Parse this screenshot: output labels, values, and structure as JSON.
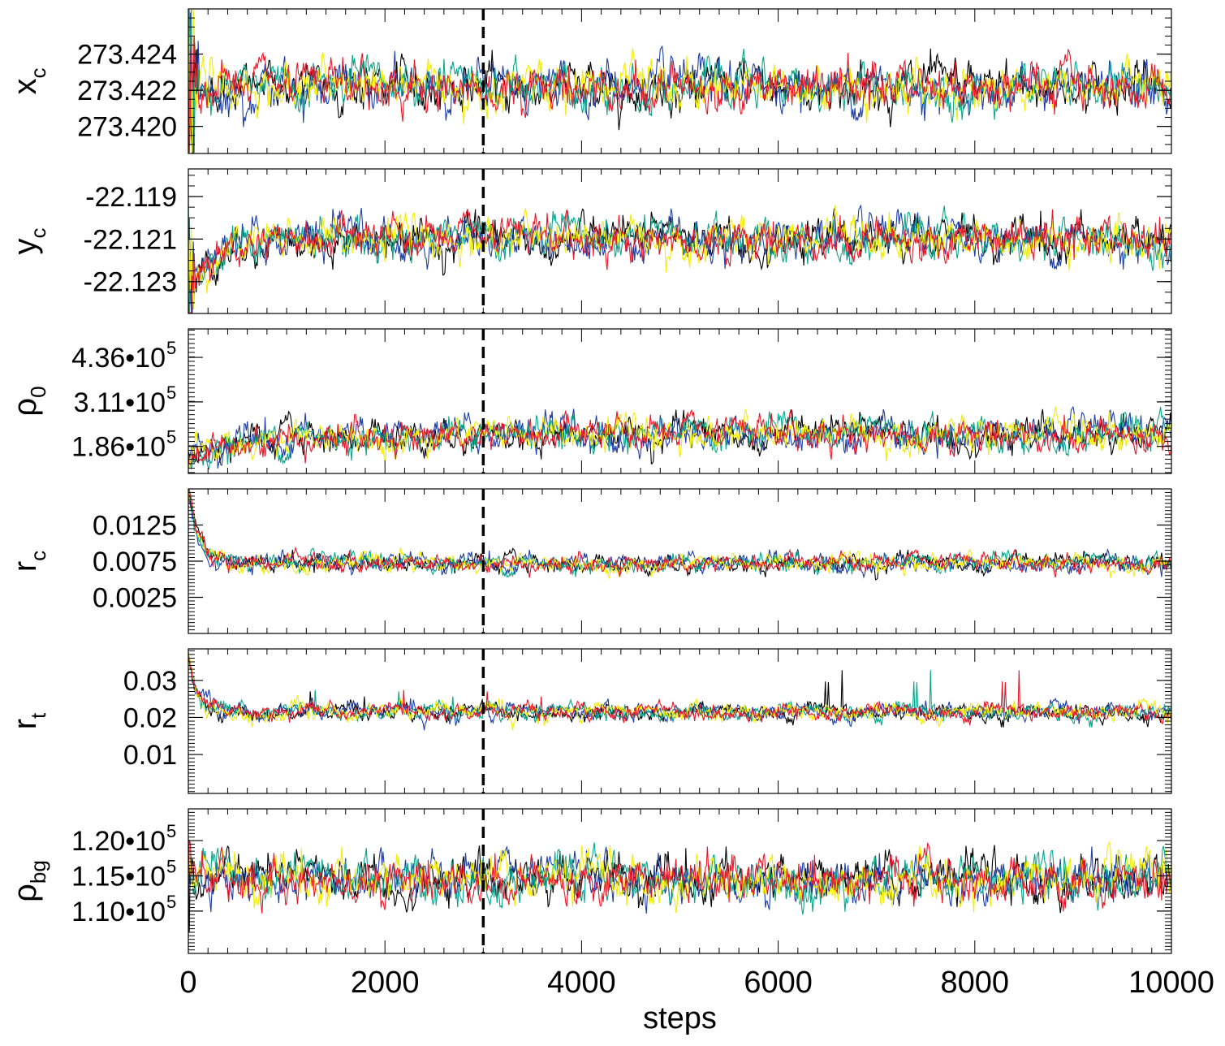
{
  "chart_data": {
    "type": "line",
    "description_free": true,
    "x_axis": {
      "label": "steps",
      "range": [
        0,
        10000
      ],
      "ticks": [
        0,
        2000,
        4000,
        6000,
        8000,
        10000
      ],
      "tick_labels": [
        "0",
        "2000",
        "4000",
        "6000",
        "8000",
        "10000"
      ]
    },
    "burn_in_marker": {
      "x": 3000,
      "style": "dashed",
      "color": "#000000"
    },
    "chains": [
      {
        "name": "chain-black",
        "color": "#000000"
      },
      {
        "name": "chain-blue",
        "color": "#1f3fa6"
      },
      {
        "name": "chain-teal",
        "color": "#0aa58a"
      },
      {
        "name": "chain-yellow",
        "color": "#f2ec05"
      },
      {
        "name": "chain-red",
        "color": "#e8182a"
      }
    ],
    "panels": [
      {
        "id": "xc",
        "label_main": "x",
        "label_sub": "c",
        "ylim": [
          273.4185,
          273.4265
        ],
        "ticks": [
          273.42,
          273.422,
          273.424
        ],
        "tick_labels": [
          "273.420",
          "273.422",
          "273.424"
        ],
        "tick_sup": [
          "",
          "",
          ""
        ],
        "minor_step": 0.0005,
        "trace": {
          "start": 273.4222,
          "equilibrium": 273.4222,
          "tau": 150,
          "noise": 0.0006,
          "burst_amp": 0.006,
          "burst_len": 120
        }
      },
      {
        "id": "yc",
        "label_main": "y",
        "label_sub": "c",
        "ylim": [
          -22.1245,
          -22.1177
        ],
        "ticks": [
          -22.119,
          -22.121,
          -22.123
        ],
        "tick_labels": [
          "-22.119",
          "-22.121",
          "-22.123"
        ],
        "tick_sup": [
          "",
          "",
          ""
        ],
        "minor_step": 0.0005,
        "trace": {
          "start": -22.1235,
          "equilibrium": -22.121,
          "tau": 250,
          "noise": 0.00045,
          "burst_amp": 0.003,
          "burst_len": 80
        }
      },
      {
        "id": "rho0",
        "label_main": "ρ",
        "label_sub": "0",
        "ylim": [
          110000,
          516000
        ],
        "ticks": [
          186000,
          311000,
          436000
        ],
        "tick_labels": [
          "1.86•10",
          "3.11•10",
          "4.36•10"
        ],
        "tick_sup": [
          "5",
          "5",
          "5"
        ],
        "minor_step": 12500,
        "trace": {
          "start": 160000,
          "equilibrium": 220000,
          "tau": 600,
          "noise": 22000,
          "burst_amp": 0,
          "burst_len": 0
        }
      },
      {
        "id": "rc",
        "label_main": "r",
        "label_sub": "c",
        "ylim": [
          -0.0025,
          0.0175
        ],
        "ticks": [
          0.0025,
          0.0075,
          0.0125
        ],
        "tick_labels": [
          "0.0025",
          "0.0075",
          "0.0125"
        ],
        "tick_sup": [
          "",
          "",
          ""
        ],
        "minor_step": 0.0005,
        "trace": {
          "start": 0.0175,
          "equilibrium": 0.0072,
          "tau": 110,
          "noise": 0.0006,
          "burst_amp": 0,
          "burst_len": 0
        }
      },
      {
        "id": "rt",
        "label_main": "r",
        "label_sub": "t",
        "ylim": [
          -0.0005,
          0.0385
        ],
        "ticks": [
          0.01,
          0.02,
          0.03
        ],
        "tick_labels": [
          "0.01",
          "0.02",
          "0.03"
        ],
        "tick_sup": [
          "",
          "",
          ""
        ],
        "minor_step": 0.001,
        "trace": {
          "start": 0.037,
          "equilibrium": 0.0215,
          "tau": 90,
          "noise": 0.0011,
          "burst_amp": 0,
          "burst_len": 0,
          "spikes": 0.012
        }
      },
      {
        "id": "rhobg",
        "label_main": "ρ",
        "label_sub": "bg",
        "ylim": [
          104000,
          124500
        ],
        "ticks": [
          110000,
          115000,
          120000
        ],
        "tick_labels": [
          "1.10•10",
          "1.15•10",
          "1.20•10"
        ],
        "tick_sup": [
          "5",
          "5",
          "5"
        ],
        "minor_step": 500,
        "trace": {
          "start": 116000,
          "equilibrium": 114500,
          "tau": 60,
          "noise": 1500,
          "burst_amp": 5000,
          "burst_len": 30
        }
      }
    ]
  }
}
